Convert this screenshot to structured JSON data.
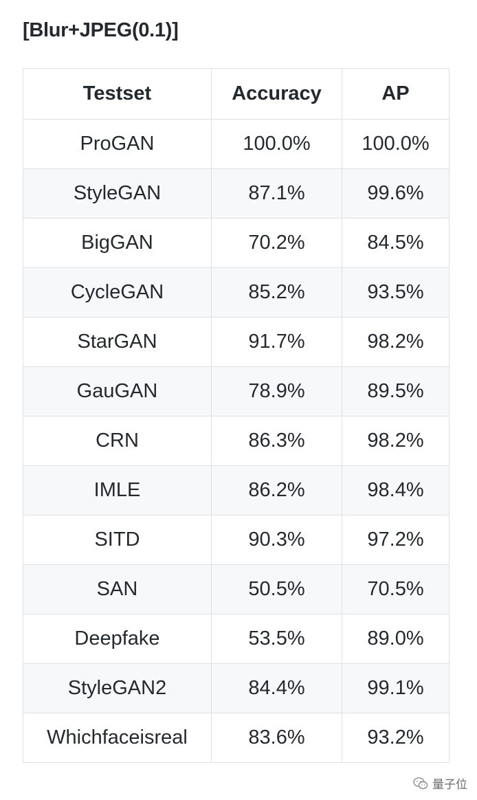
{
  "heading": "[Blur+JPEG(0.1)]",
  "table": {
    "headers": [
      "Testset",
      "Accuracy",
      "AP"
    ],
    "rows": [
      [
        "ProGAN",
        "100.0%",
        "100.0%"
      ],
      [
        "StyleGAN",
        "87.1%",
        "99.6%"
      ],
      [
        "BigGAN",
        "70.2%",
        "84.5%"
      ],
      [
        "CycleGAN",
        "85.2%",
        "93.5%"
      ],
      [
        "StarGAN",
        "91.7%",
        "98.2%"
      ],
      [
        "GauGAN",
        "78.9%",
        "89.5%"
      ],
      [
        "CRN",
        "86.3%",
        "98.2%"
      ],
      [
        "IMLE",
        "86.2%",
        "98.4%"
      ],
      [
        "SITD",
        "90.3%",
        "97.2%"
      ],
      [
        "SAN",
        "50.5%",
        "70.5%"
      ],
      [
        "Deepfake",
        "53.5%",
        "89.0%"
      ],
      [
        "StyleGAN2",
        "84.4%",
        "99.1%"
      ],
      [
        "Whichfaceisreal",
        "83.6%",
        "93.2%"
      ]
    ]
  },
  "watermark": {
    "icon": "wechat-icon",
    "text": "量子位"
  }
}
